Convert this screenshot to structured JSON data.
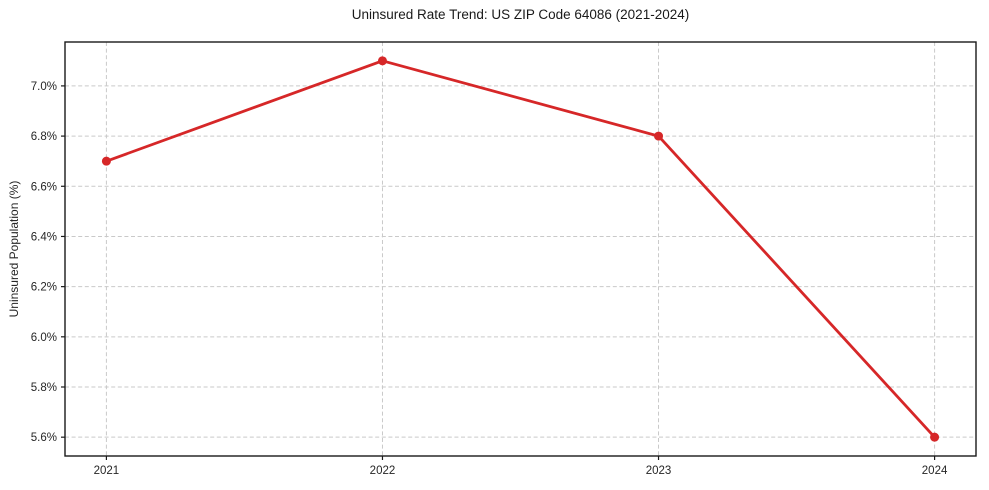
{
  "chart_data": {
    "type": "line",
    "title": "Uninsured Rate Trend: US ZIP Code 64086 (2021-2024)",
    "xlabel": "",
    "ylabel": "Uninsured Population (%)",
    "x": [
      2021,
      2022,
      2023,
      2024
    ],
    "x_tick_labels": [
      "2021",
      "2022",
      "2023",
      "2024"
    ],
    "values": [
      6.7,
      7.1,
      6.8,
      5.6
    ],
    "y_ticks": [
      5.6,
      5.8,
      6.0,
      6.2,
      6.4,
      6.6,
      6.8,
      7.0
    ],
    "y_tick_labels": [
      "5.6%",
      "5.8%",
      "6.0%",
      "6.2%",
      "6.4%",
      "6.6%",
      "6.8%",
      "7.0%"
    ],
    "xlim": [
      2020.85,
      2024.15
    ],
    "ylim": [
      5.525,
      7.175
    ],
    "grid": true,
    "legend": "none",
    "line_color": "#d62728",
    "grid_color": "#c9c9c9",
    "axis_color": "#1a1a1a",
    "tick_text_color": "#262626",
    "marker": "o"
  }
}
